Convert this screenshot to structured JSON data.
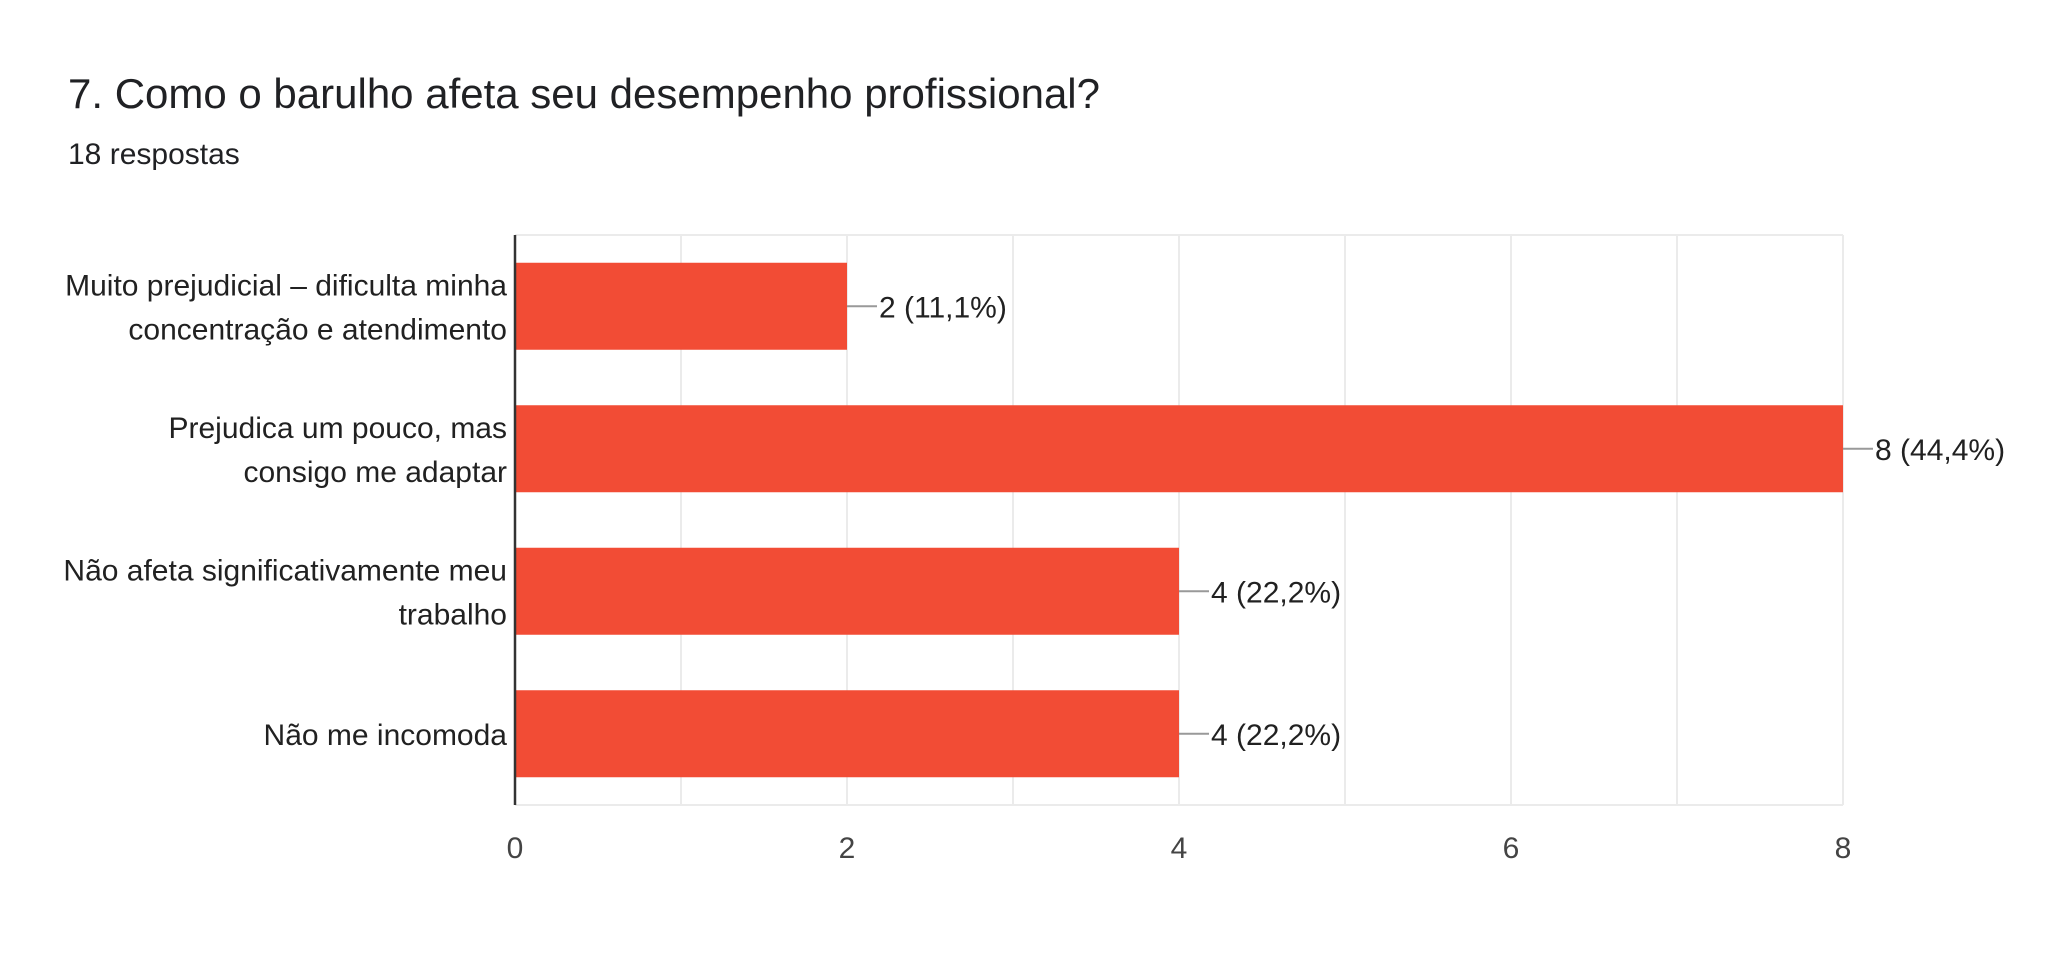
{
  "header": {
    "title": "7. Como o barulho afeta seu desempenho profissional?",
    "subtitle": "18 respostas"
  },
  "chart_data": {
    "type": "bar",
    "orientation": "horizontal",
    "title": "7. Como o barulho afeta seu desempenho profissional?",
    "subtitle": "18 respostas",
    "categories": [
      [
        "Muito prejudicial – dificulta minha",
        "concentração e atendimento"
      ],
      [
        "Prejudica um pouco, mas",
        "consigo me adaptar"
      ],
      [
        "Não afeta significativamente meu",
        "trabalho"
      ],
      [
        "Não me incomoda"
      ]
    ],
    "values": [
      2,
      8,
      4,
      4
    ],
    "data_labels": [
      "2 (11,1%)",
      "8 (44,4%)",
      "4 (22,2%)",
      "4 (22,2%)"
    ],
    "xlim": [
      0,
      8
    ],
    "x_ticks": [
      "0",
      "2",
      "4",
      "6",
      "8"
    ],
    "grid": true,
    "legend": "none",
    "bar_color": "#f24c35",
    "grid_color": "#ebebeb",
    "axis_color": "#333333",
    "leader_color": "#999999"
  }
}
